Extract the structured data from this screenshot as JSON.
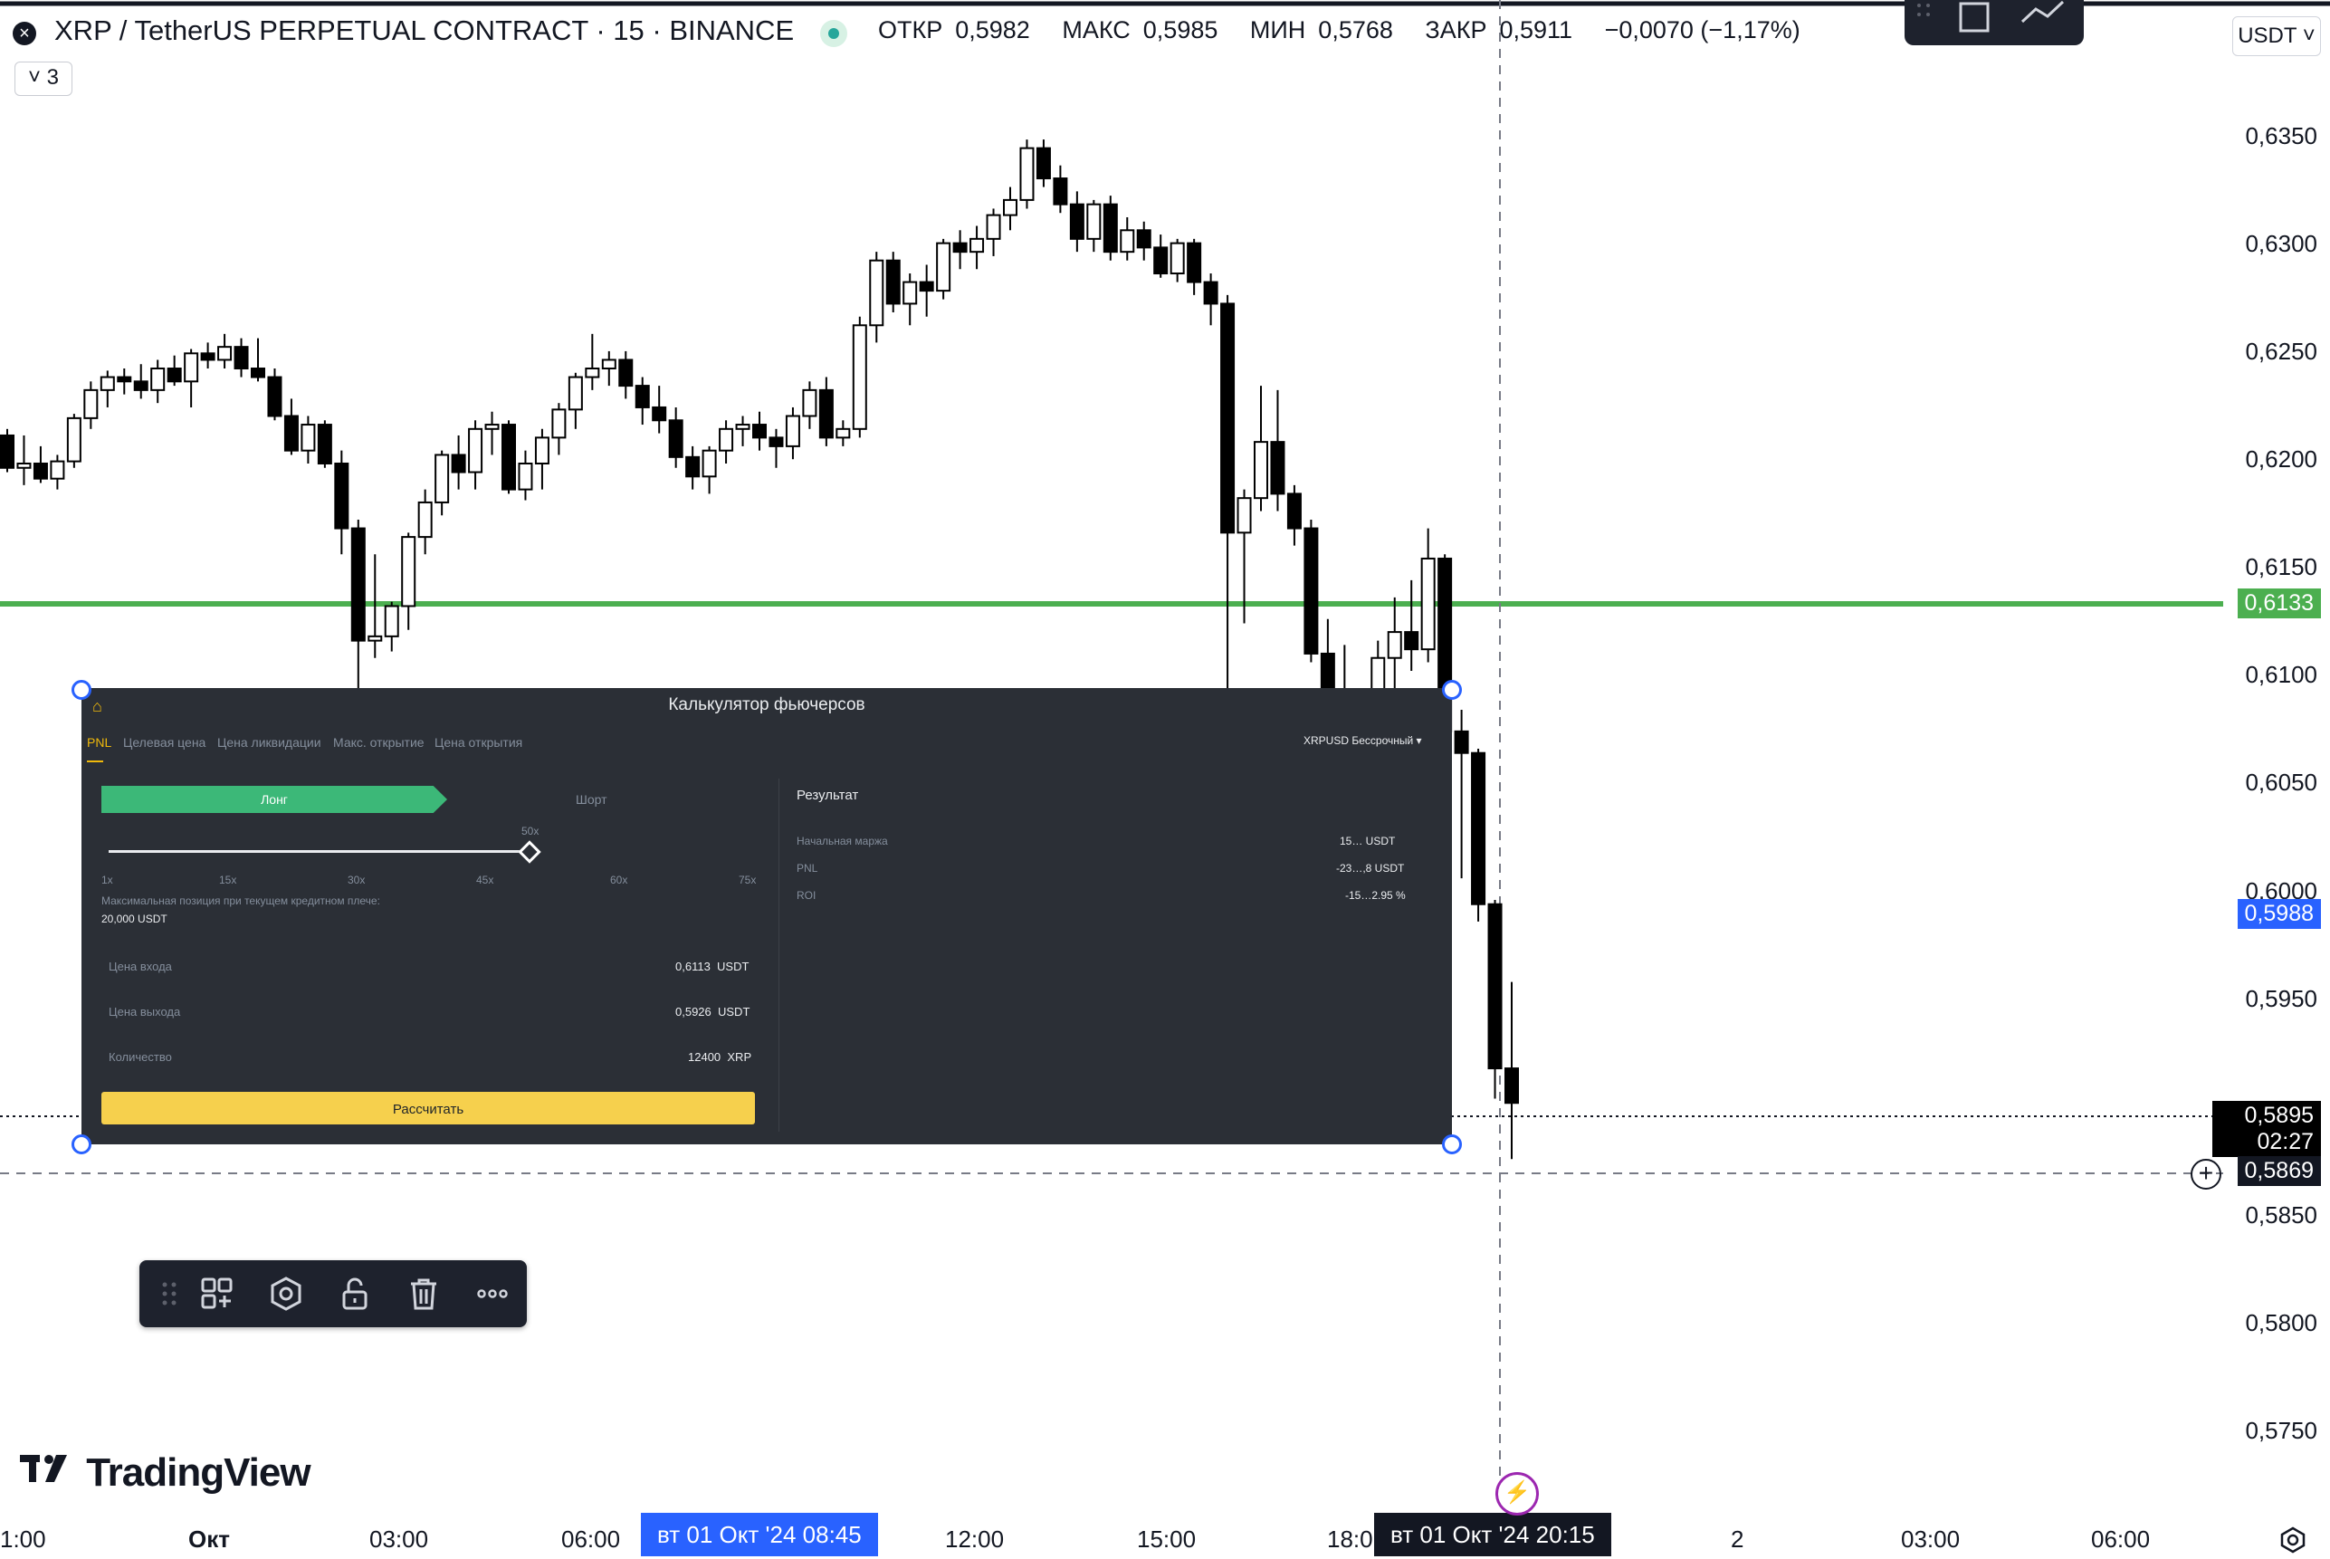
{
  "header": {
    "title": "XRP / TetherUS PERPETUAL CONTRACT · 15 · BINANCE",
    "ohlc": {
      "open_label": "ОТКР",
      "open": "0,5982",
      "high_label": "МАКС",
      "high": "0,5985",
      "low_label": "МИН",
      "low": "0,5768",
      "close_label": "ЗАКР",
      "close": "0,5911",
      "change": "−0,0070 (−1,17%)"
    },
    "indicators_count": "3",
    "currency": "USDT"
  },
  "price_axis": {
    "labels": [
      "0,6350",
      "0,6300",
      "0,6250",
      "0,6200",
      "0,6150",
      "0,6100",
      "0,6050",
      "0,6000",
      "0,5950",
      "0,5850",
      "0,5800",
      "0,5750"
    ],
    "green_line": "0,6133",
    "blue_tag": "0,5988",
    "last_price": "0,5895",
    "countdown": "02:27",
    "crosshair_price": "0,5869"
  },
  "time_axis": {
    "labels": [
      "1:00",
      "Окт",
      "03:00",
      "06:00",
      "12:00",
      "15:00",
      "18:0",
      "2",
      "03:00",
      "06:00"
    ],
    "highlight_left": "вт 01 Окт '24   08:45",
    "highlight_right": "вт 01 Окт '24   20:15"
  },
  "brand": {
    "name": "TradingView"
  },
  "colors": {
    "green_line": "#4caf50",
    "blue_tag": "#2962ff",
    "up": "#ffffff",
    "down": "#000000"
  },
  "calculator": {
    "title": "Калькулятор фьючерсов",
    "tabs": [
      "PNL",
      "Целевая цена",
      "Цена ликвидации",
      "Макс. открытие",
      "Цена открытия"
    ],
    "symbol": "XRPUSD",
    "mode": "Бессрочный",
    "long": "Лонг",
    "short": "Шорт",
    "leverage_current": "50x",
    "leverage_marks": [
      "1x",
      "15x",
      "30x",
      "45x",
      "60x",
      "75x"
    ],
    "max_position_label": "Максимальная позиция при текущем кредитном плече:",
    "max_position_value": "20,000 USDT",
    "entry_label": "Цена входа",
    "entry_value": "0,6113",
    "entry_unit": "USDT",
    "exit_label": "Цена выхода",
    "exit_value": "0,5926",
    "exit_unit": "USDT",
    "qty_label": "Количество",
    "qty_value": "12400",
    "qty_unit": "XRP",
    "calc_button": "Рассчитать",
    "result_title": "Результат",
    "margin_label": "Начальная маржа",
    "margin_value": "15…  USDT",
    "pnl_label": "PNL",
    "pnl_value": "-23…,8  USDT",
    "roi_label": "ROI",
    "roi_value": "-15…2.95 %"
  },
  "toolbar_icons": [
    "drag-handle-icon",
    "add-widget-icon",
    "settings-hex-icon",
    "unlock-icon",
    "trash-icon",
    "more-icon"
  ]
}
